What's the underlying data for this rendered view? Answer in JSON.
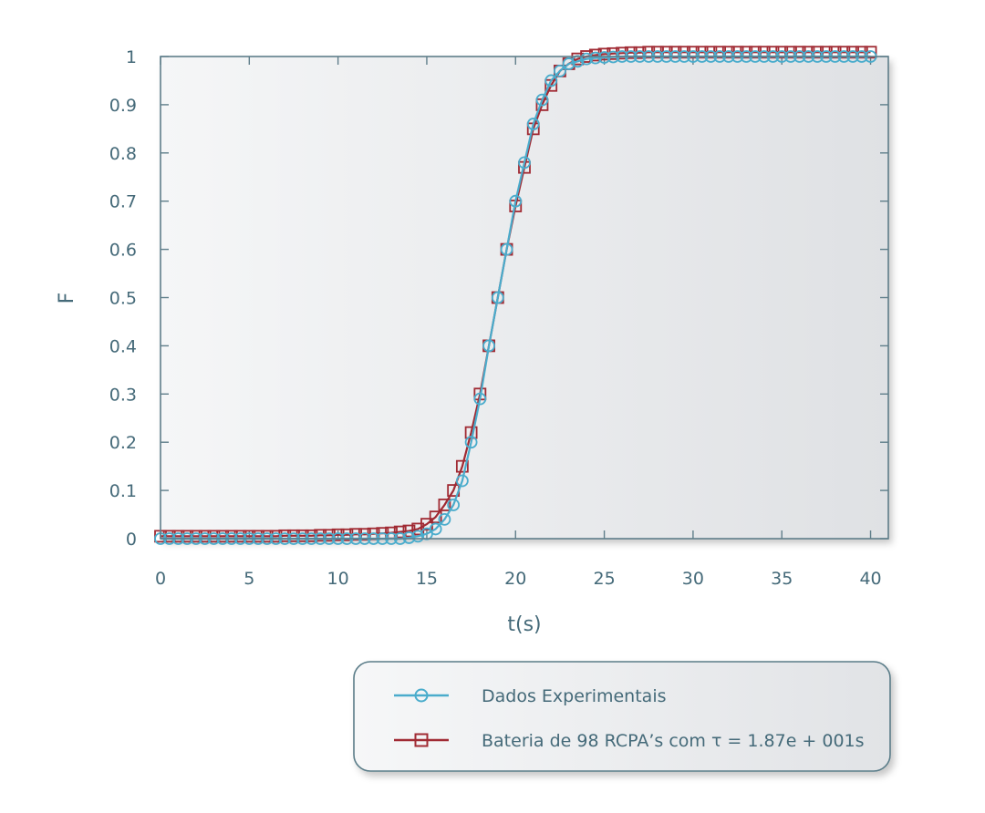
{
  "chart_data": {
    "type": "line",
    "title": "",
    "xlabel": "t(s)",
    "ylabel": "F",
    "xlim": [
      0,
      41
    ],
    "ylim": [
      0,
      1
    ],
    "x_ticks": [
      0,
      5,
      10,
      15,
      20,
      25,
      30,
      35,
      40
    ],
    "y_ticks": [
      0,
      0.1,
      0.2,
      0.3,
      0.4,
      0.5,
      0.6,
      0.7,
      0.8,
      0.9,
      1
    ],
    "x_tick_labels": [
      "0",
      "5",
      "10",
      "15",
      "20",
      "25",
      "30",
      "35",
      "40"
    ],
    "y_tick_labels": [
      "0",
      "0.1",
      "0.2",
      "0.3",
      "0.4",
      "0.5",
      "0.6",
      "0.7",
      "0.8",
      "0.9",
      "1"
    ],
    "grid": false,
    "legend_position": "bottom-right",
    "x": [
      0,
      0.5,
      1,
      1.5,
      2,
      2.5,
      3,
      3.5,
      4,
      4.5,
      5,
      5.5,
      6,
      6.5,
      7,
      7.5,
      8,
      8.5,
      9,
      9.5,
      10,
      10.5,
      11,
      11.5,
      12,
      12.5,
      13,
      13.5,
      14,
      14.5,
      15,
      15.5,
      16,
      16.5,
      17,
      17.5,
      18,
      18.5,
      19,
      19.5,
      20,
      20.5,
      21,
      21.5,
      22,
      22.5,
      23,
      23.5,
      24,
      24.5,
      25,
      25.5,
      26,
      26.5,
      27,
      27.5,
      28,
      28.5,
      29,
      29.5,
      30,
      30.5,
      31,
      31.5,
      32,
      32.5,
      33,
      33.5,
      34,
      34.5,
      35,
      35.5,
      36,
      36.5,
      37,
      37.5,
      38,
      38.5,
      39,
      39.5,
      40
    ],
    "series": [
      {
        "name": "Dados Experimentais",
        "color": "#4aaccc",
        "marker": "circle",
        "values": [
          0,
          0,
          0,
          0,
          0,
          0,
          0,
          0,
          0,
          0,
          0,
          0,
          0,
          0,
          0,
          0,
          0,
          0,
          0,
          0,
          0,
          0,
          0,
          0,
          0,
          0,
          0,
          0,
          0.002,
          0.005,
          0.01,
          0.02,
          0.04,
          0.07,
          0.12,
          0.2,
          0.29,
          0.4,
          0.5,
          0.6,
          0.7,
          0.78,
          0.86,
          0.91,
          0.95,
          0.97,
          0.985,
          0.99,
          0.995,
          0.997,
          0.998,
          0.999,
          1,
          1,
          1,
          1,
          1,
          1,
          1,
          1,
          1,
          1,
          1,
          1,
          1,
          1,
          1,
          1,
          1,
          1,
          1,
          1,
          1,
          1,
          1,
          1,
          1,
          1,
          1,
          1,
          1
        ]
      },
      {
        "name": "Bateria de 98 RCPA’s com τ = 1.87e + 001s",
        "color": "#a02a33",
        "marker": "square",
        "values": [
          0.005,
          0.005,
          0.005,
          0.005,
          0.005,
          0.005,
          0.005,
          0.005,
          0.005,
          0.005,
          0.005,
          0.005,
          0.005,
          0.005,
          0.006,
          0.006,
          0.006,
          0.006,
          0.007,
          0.007,
          0.008,
          0.008,
          0.009,
          0.009,
          0.01,
          0.011,
          0.012,
          0.014,
          0.016,
          0.02,
          0.03,
          0.045,
          0.07,
          0.1,
          0.15,
          0.22,
          0.3,
          0.4,
          0.5,
          0.6,
          0.69,
          0.77,
          0.85,
          0.9,
          0.94,
          0.97,
          0.985,
          0.995,
          1,
          1.003,
          1.005,
          1.006,
          1.007,
          1.008,
          1.008,
          1.009,
          1.009,
          1.009,
          1.009,
          1.009,
          1.009,
          1.009,
          1.009,
          1.009,
          1.009,
          1.009,
          1.009,
          1.009,
          1.009,
          1.009,
          1.009,
          1.009,
          1.009,
          1.009,
          1.009,
          1.009,
          1.009,
          1.009,
          1.009,
          1.009,
          1.009
        ]
      }
    ]
  }
}
